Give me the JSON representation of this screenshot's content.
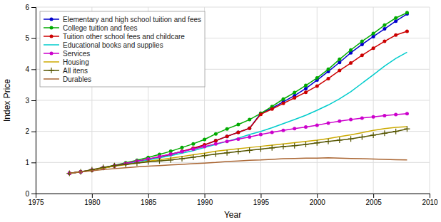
{
  "chart_data": {
    "type": "line",
    "xlabel": "Year",
    "ylabel": "Index Price",
    "xlim": [
      1975,
      2010
    ],
    "ylim": [
      0,
      6
    ],
    "xticks": [
      1975,
      1980,
      1985,
      1990,
      1995,
      2000,
      2005,
      2010
    ],
    "yticks": [
      0,
      1,
      2,
      3,
      4,
      5,
      6
    ],
    "grid": true,
    "legend": "upper-left",
    "x": [
      1978,
      1979,
      1980,
      1981,
      1982,
      1983,
      1984,
      1985,
      1986,
      1987,
      1988,
      1989,
      1990,
      1991,
      1992,
      1993,
      1994,
      1995,
      1996,
      1997,
      1998,
      1999,
      2000,
      2001,
      2002,
      2003,
      2004,
      2005,
      2006,
      2007,
      2008
    ],
    "series": [
      {
        "name": "Elementary and high school tuition and fees",
        "color": "#0000CC",
        "marker": "circle",
        "values": [
          0.65,
          0.7,
          0.75,
          0.82,
          0.89,
          0.96,
          1.03,
          1.1,
          1.18,
          1.26,
          1.35,
          1.45,
          1.56,
          1.7,
          1.84,
          1.97,
          2.1,
          2.58,
          2.75,
          2.95,
          3.15,
          3.38,
          3.65,
          3.93,
          4.22,
          4.53,
          4.8,
          5.05,
          5.3,
          5.55,
          5.78
        ]
      },
      {
        "name": "College tuition and fees",
        "color": "#00AA00",
        "marker": "circle",
        "values": [
          0.65,
          0.7,
          0.75,
          0.83,
          0.91,
          0.99,
          1.07,
          1.16,
          1.26,
          1.36,
          1.48,
          1.6,
          1.74,
          1.92,
          2.08,
          2.22,
          2.38,
          2.58,
          2.8,
          3.04,
          3.25,
          3.48,
          3.72,
          4.0,
          4.32,
          4.62,
          4.9,
          5.15,
          5.42,
          5.65,
          5.82
        ]
      },
      {
        "name": "Tuition other school fees and childcare",
        "color": "#CC0000",
        "marker": "circle",
        "values": [
          0.65,
          0.7,
          0.75,
          0.82,
          0.89,
          0.96,
          1.03,
          1.1,
          1.18,
          1.26,
          1.36,
          1.46,
          1.57,
          1.7,
          1.84,
          1.97,
          2.1,
          2.55,
          2.72,
          2.9,
          3.08,
          3.26,
          3.46,
          3.7,
          3.96,
          4.2,
          4.45,
          4.68,
          4.9,
          5.1,
          5.22
        ]
      },
      {
        "name": "Educational books and supplies",
        "color": "#00CCCC",
        "marker": "none",
        "values": [
          0.65,
          0.7,
          0.76,
          0.82,
          0.89,
          0.95,
          1.02,
          1.08,
          1.15,
          1.22,
          1.3,
          1.38,
          1.48,
          1.58,
          1.68,
          1.78,
          1.9,
          2.0,
          2.12,
          2.25,
          2.38,
          2.52,
          2.68,
          2.85,
          3.05,
          3.28,
          3.55,
          3.82,
          4.1,
          4.35,
          4.55
        ]
      },
      {
        "name": "Services",
        "color": "#CC00CC",
        "marker": "circle",
        "values": [
          0.65,
          0.7,
          0.76,
          0.83,
          0.9,
          0.97,
          1.04,
          1.11,
          1.19,
          1.27,
          1.35,
          1.43,
          1.51,
          1.6,
          1.68,
          1.75,
          1.82,
          1.9,
          1.97,
          2.03,
          2.09,
          2.14,
          2.2,
          2.27,
          2.33,
          2.38,
          2.43,
          2.47,
          2.51,
          2.54,
          2.57
        ]
      },
      {
        "name": "Housing",
        "color": "#CCAA00",
        "marker": "none",
        "values": [
          0.65,
          0.7,
          0.76,
          0.82,
          0.88,
          0.93,
          0.98,
          1.04,
          1.09,
          1.14,
          1.19,
          1.25,
          1.3,
          1.36,
          1.4,
          1.44,
          1.48,
          1.52,
          1.56,
          1.6,
          1.64,
          1.68,
          1.72,
          1.77,
          1.83,
          1.89,
          1.96,
          2.03,
          2.09,
          2.13,
          2.15
        ]
      },
      {
        "name": "All itens",
        "color": "#555500",
        "marker": "plus",
        "values": [
          0.65,
          0.7,
          0.77,
          0.84,
          0.9,
          0.94,
          0.98,
          1.02,
          1.05,
          1.08,
          1.12,
          1.17,
          1.22,
          1.27,
          1.31,
          1.35,
          1.39,
          1.43,
          1.47,
          1.51,
          1.54,
          1.58,
          1.63,
          1.68,
          1.72,
          1.76,
          1.82,
          1.88,
          1.94,
          2.0,
          2.08
        ]
      },
      {
        "name": "Durables",
        "color": "#AA6633",
        "marker": "none",
        "values": [
          0.65,
          0.69,
          0.73,
          0.77,
          0.8,
          0.83,
          0.86,
          0.88,
          0.9,
          0.92,
          0.94,
          0.96,
          0.98,
          1.0,
          1.03,
          1.05,
          1.07,
          1.08,
          1.1,
          1.12,
          1.13,
          1.14,
          1.14,
          1.15,
          1.14,
          1.13,
          1.12,
          1.11,
          1.1,
          1.09,
          1.08
        ]
      }
    ]
  }
}
